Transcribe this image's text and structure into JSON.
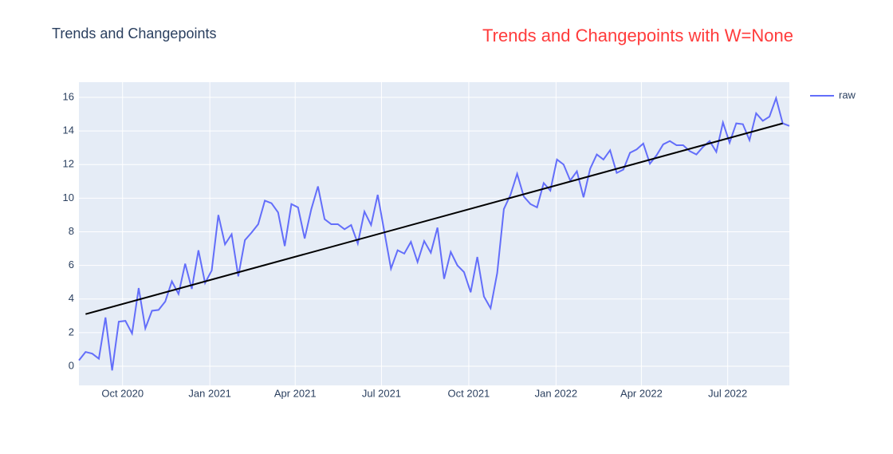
{
  "chart_data": {
    "type": "line",
    "title": "Trends and Changepoints",
    "annotation": "Trends and Changepoints with W=None",
    "annotation_color": "#ff3b3b",
    "x": [
      "2020-08-16",
      "2020-08-23",
      "2020-08-30",
      "2020-09-06",
      "2020-09-13",
      "2020-09-20",
      "2020-09-27",
      "2020-10-04",
      "2020-10-11",
      "2020-10-18",
      "2020-10-25",
      "2020-11-01",
      "2020-11-08",
      "2020-11-15",
      "2020-11-22",
      "2020-11-29",
      "2020-12-06",
      "2020-12-13",
      "2020-12-20",
      "2020-12-27",
      "2021-01-03",
      "2021-01-10",
      "2021-01-17",
      "2021-01-24",
      "2021-01-31",
      "2021-02-07",
      "2021-02-14",
      "2021-02-21",
      "2021-02-28",
      "2021-03-07",
      "2021-03-14",
      "2021-03-21",
      "2021-03-28",
      "2021-04-04",
      "2021-04-11",
      "2021-04-18",
      "2021-04-25",
      "2021-05-02",
      "2021-05-09",
      "2021-05-16",
      "2021-05-23",
      "2021-05-30",
      "2021-06-06",
      "2021-06-13",
      "2021-06-20",
      "2021-06-27",
      "2021-07-04",
      "2021-07-11",
      "2021-07-18",
      "2021-07-25",
      "2021-08-01",
      "2021-08-08",
      "2021-08-15",
      "2021-08-22",
      "2021-08-29",
      "2021-09-05",
      "2021-09-12",
      "2021-09-19",
      "2021-09-26",
      "2021-10-03",
      "2021-10-10",
      "2021-10-17",
      "2021-10-24",
      "2021-10-31",
      "2021-11-07",
      "2021-11-14",
      "2021-11-21",
      "2021-11-28",
      "2021-12-05",
      "2021-12-12",
      "2021-12-19",
      "2021-12-26",
      "2022-01-02",
      "2022-01-09",
      "2022-01-16",
      "2022-01-23",
      "2022-01-30",
      "2022-02-06",
      "2022-02-13",
      "2022-02-20",
      "2022-02-27",
      "2022-03-06",
      "2022-03-13",
      "2022-03-20",
      "2022-03-27",
      "2022-04-03",
      "2022-04-10",
      "2022-04-17",
      "2022-04-24",
      "2022-05-01",
      "2022-05-08",
      "2022-05-15",
      "2022-05-22",
      "2022-05-29",
      "2022-06-05",
      "2022-06-12",
      "2022-06-19",
      "2022-06-26",
      "2022-07-03",
      "2022-07-10",
      "2022-07-17",
      "2022-07-24",
      "2022-07-31",
      "2022-08-07",
      "2022-08-14",
      "2022-08-21",
      "2022-08-28",
      "2022-09-04"
    ],
    "series": [
      {
        "name": "raw",
        "color": "#636efa",
        "values": [
          0.35,
          0.85,
          0.75,
          0.45,
          2.9,
          -0.25,
          2.65,
          2.7,
          1.95,
          4.65,
          2.25,
          3.3,
          3.35,
          3.85,
          5.05,
          4.3,
          6.1,
          4.6,
          6.9,
          4.95,
          5.7,
          9.0,
          7.25,
          7.85,
          5.35,
          7.5,
          7.95,
          8.45,
          9.85,
          9.7,
          9.15,
          7.15,
          9.65,
          9.45,
          7.6,
          9.35,
          10.7,
          8.75,
          8.45,
          8.45,
          8.15,
          8.4,
          7.3,
          9.2,
          8.4,
          10.2,
          8.0,
          5.8,
          6.9,
          6.7,
          7.4,
          6.2,
          7.45,
          6.75,
          8.25,
          5.2,
          6.8,
          6.0,
          5.6,
          4.4,
          6.5,
          4.15,
          3.45,
          5.55,
          9.35,
          10.2,
          11.45,
          10.1,
          9.65,
          9.45,
          10.9,
          10.45,
          12.3,
          12.0,
          11.05,
          11.6,
          10.05,
          11.75,
          12.6,
          12.3,
          12.85,
          11.5,
          11.7,
          12.7,
          12.9,
          13.25,
          12.05,
          12.55,
          13.2,
          13.4,
          13.15,
          13.15,
          12.8,
          12.6,
          13.05,
          13.4,
          12.75,
          14.5,
          13.3,
          14.45,
          14.4,
          13.45,
          15.05,
          14.6,
          14.85,
          15.95,
          14.45,
          14.3
        ]
      }
    ],
    "trend": {
      "color": "#000000",
      "x": [
        "2020-08-23",
        "2022-08-28"
      ],
      "values": [
        3.1,
        14.45
      ]
    },
    "xlim": [
      "2020-08-16",
      "2022-09-04"
    ],
    "xticks": [
      {
        "value": "2020-10-01",
        "label": "Oct 2020"
      },
      {
        "value": "2021-01-01",
        "label": "Jan 2021"
      },
      {
        "value": "2021-04-01",
        "label": "Apr 2021"
      },
      {
        "value": "2021-07-01",
        "label": "Jul 2021"
      },
      {
        "value": "2021-10-01",
        "label": "Oct 2021"
      },
      {
        "value": "2022-01-01",
        "label": "Jan 2022"
      },
      {
        "value": "2022-04-01",
        "label": "Apr 2022"
      },
      {
        "value": "2022-07-01",
        "label": "Jul 2022"
      }
    ],
    "ylim": [
      -1.14,
      16.9
    ],
    "yticks": [
      0,
      2,
      4,
      6,
      8,
      10,
      12,
      14,
      16
    ],
    "grid": true,
    "legend": "top-right"
  }
}
